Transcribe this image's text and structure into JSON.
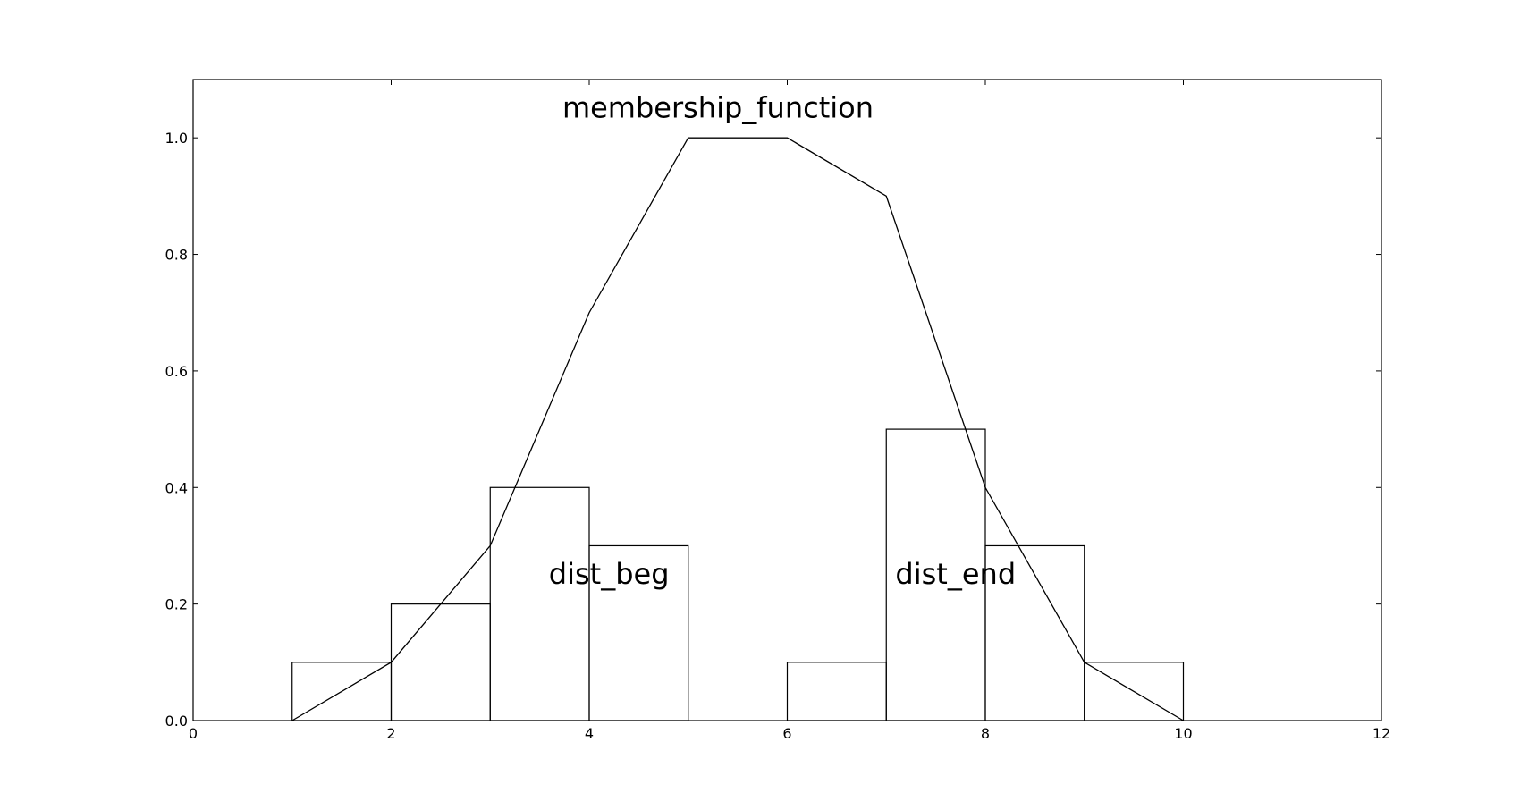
{
  "chart_data": {
    "type": "line",
    "xlim": [
      0,
      12
    ],
    "xticks": [
      0,
      2,
      4,
      6,
      8,
      10,
      12
    ],
    "ylim": [
      0,
      1.1
    ],
    "yticks": [
      {
        "value": 0,
        "label": "0.0"
      },
      {
        "value": 0.2,
        "label": "0.2"
      },
      {
        "value": 0.4,
        "label": "0.4"
      },
      {
        "value": 0.6,
        "label": "0.6"
      },
      {
        "value": 0.8,
        "label": "0.8"
      },
      {
        "value": 1,
        "label": "1.0"
      }
    ],
    "series": [
      {
        "name": "membership_function",
        "type": "line",
        "color": "#000000",
        "x": [
          1,
          2,
          3,
          4,
          5,
          6,
          7,
          8,
          9,
          10
        ],
        "values": [
          0,
          0.1,
          0.3,
          0.7,
          1.0,
          1.0,
          0.9,
          0.4,
          0.1,
          0
        ]
      },
      {
        "name": "dist_beg",
        "type": "step",
        "color": "#000000",
        "bins": [
          1,
          2,
          3,
          4,
          5
        ],
        "values": [
          0.1,
          0.2,
          0.4,
          0.3
        ]
      },
      {
        "name": "dist_end",
        "type": "step",
        "color": "#000000",
        "bins": [
          6,
          7,
          8,
          9,
          10
        ],
        "values": [
          0.1,
          0.5,
          0.3,
          0.1
        ]
      }
    ]
  }
}
